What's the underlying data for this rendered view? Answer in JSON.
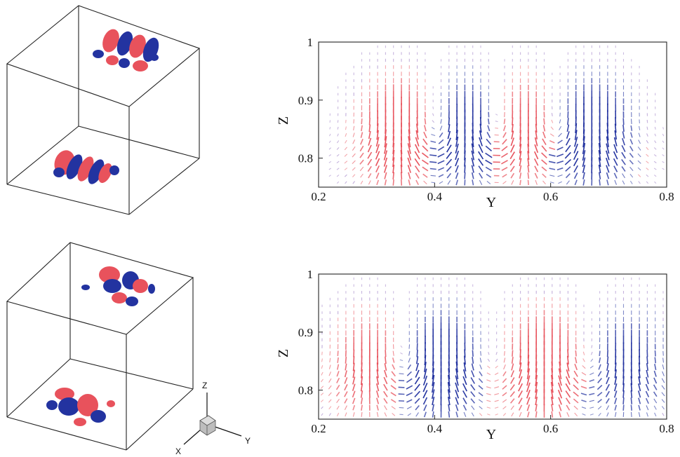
{
  "figure": {
    "colors": {
      "positive": "#e8525c",
      "negative": "#2333a0",
      "neutral": "#7a4fb0",
      "frame": "#222222"
    },
    "triad": {
      "z_label": "Z",
      "y_label": "Y",
      "x_label": "X"
    }
  },
  "chart_data": [
    {
      "type": "vector-field",
      "panel": "top",
      "xlabel": "Y",
      "ylabel": "Z",
      "xlim": [
        0.2,
        0.8
      ],
      "ylim": [
        0.75,
        1.0
      ],
      "xticks": [
        "0.2",
        "0.4",
        "0.6",
        "0.8"
      ],
      "yticks": [
        "0.8",
        "0.9",
        "1"
      ],
      "grid": false,
      "cells": [
        {
          "center_y": 0.34,
          "sign": "positive",
          "strength": 1.0
        },
        {
          "center_y": 0.46,
          "sign": "negative",
          "strength": 1.0
        },
        {
          "center_y": 0.55,
          "sign": "positive",
          "strength": 0.9
        },
        {
          "center_y": 0.67,
          "sign": "negative",
          "strength": 1.0
        }
      ]
    },
    {
      "type": "vector-field",
      "panel": "bottom",
      "xlabel": "Y",
      "ylabel": "Z",
      "xlim": [
        0.2,
        0.8
      ],
      "ylim": [
        0.75,
        1.0
      ],
      "xticks": [
        "0.2",
        "0.4",
        "0.6",
        "0.8"
      ],
      "yticks": [
        "0.8",
        "0.9",
        "1"
      ],
      "grid": false,
      "cells": [
        {
          "center_y": 0.29,
          "sign": "positive",
          "strength": 0.7
        },
        {
          "center_y": 0.41,
          "sign": "negative",
          "strength": 1.0
        },
        {
          "center_y": 0.59,
          "sign": "positive",
          "strength": 1.0
        },
        {
          "center_y": 0.73,
          "sign": "negative",
          "strength": 0.7
        }
      ]
    }
  ]
}
